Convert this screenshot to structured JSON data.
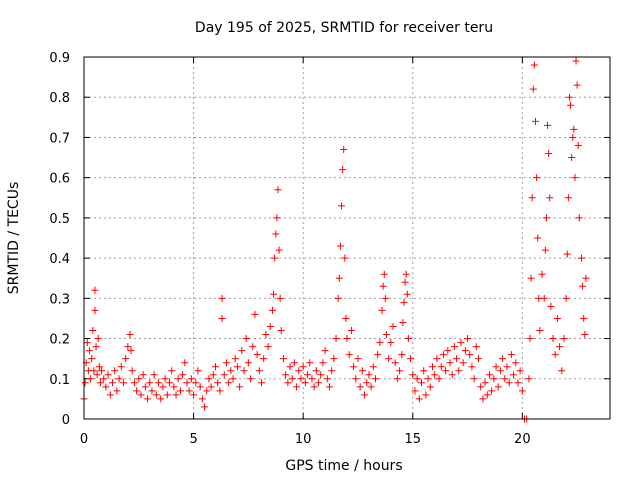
{
  "chart_data": {
    "type": "scatter",
    "title": "Day 195 of 2025, SRMTID for receiver teru",
    "xlabel": "GPS time / hours",
    "ylabel": "SRMTID / TECUs",
    "xlim": [
      0,
      24
    ],
    "ylim": [
      0,
      0.9
    ],
    "xticks": [
      0,
      5,
      10,
      15,
      20
    ],
    "xtick_labels": [
      "0",
      "5",
      "10",
      "15",
      "20"
    ],
    "yticks": [
      0,
      0.1,
      0.2,
      0.3,
      0.4,
      0.5,
      0.6,
      0.7,
      0.8,
      0.9
    ],
    "ytick_labels": [
      "0",
      "0.1",
      "0.2",
      "0.3",
      "0.4",
      "0.5",
      "0.6",
      "0.7",
      "0.8",
      "0.9"
    ],
    "grid": true,
    "marker": "+",
    "series": [
      {
        "name": "SRMTID",
        "color": "#ff0000",
        "points": [
          [
            0.0,
            0.05
          ],
          [
            0.05,
            0.09
          ],
          [
            0.1,
            0.14
          ],
          [
            0.15,
            0.19
          ],
          [
            0.2,
            0.12
          ],
          [
            0.25,
            0.17
          ],
          [
            0.3,
            0.1
          ],
          [
            0.35,
            0.15
          ],
          [
            0.4,
            0.22
          ],
          [
            0.45,
            0.12
          ],
          [
            0.5,
            0.27
          ],
          [
            0.5,
            0.32
          ],
          [
            0.55,
            0.18
          ],
          [
            0.6,
            0.11
          ],
          [
            0.65,
            0.2
          ],
          [
            0.7,
            0.13
          ],
          [
            0.75,
            0.09
          ],
          [
            0.8,
            0.12
          ],
          [
            0.9,
            0.1
          ],
          [
            1.0,
            0.08
          ],
          [
            1.1,
            0.11
          ],
          [
            1.2,
            0.06
          ],
          [
            1.3,
            0.09
          ],
          [
            1.4,
            0.12
          ],
          [
            1.5,
            0.07
          ],
          [
            1.6,
            0.1
          ],
          [
            1.7,
            0.13
          ],
          [
            1.8,
            0.09
          ],
          [
            1.9,
            0.15
          ],
          [
            2.0,
            0.18
          ],
          [
            2.1,
            0.21
          ],
          [
            2.15,
            0.17
          ],
          [
            2.2,
            0.12
          ],
          [
            2.3,
            0.09
          ],
          [
            2.4,
            0.07
          ],
          [
            2.5,
            0.1
          ],
          [
            2.6,
            0.06
          ],
          [
            2.7,
            0.11
          ],
          [
            2.8,
            0.08
          ],
          [
            2.9,
            0.05
          ],
          [
            3.0,
            0.09
          ],
          [
            3.1,
            0.07
          ],
          [
            3.2,
            0.11
          ],
          [
            3.3,
            0.06
          ],
          [
            3.4,
            0.09
          ],
          [
            3.5,
            0.05
          ],
          [
            3.6,
            0.08
          ],
          [
            3.7,
            0.1
          ],
          [
            3.8,
            0.06
          ],
          [
            3.9,
            0.09
          ],
          [
            4.0,
            0.12
          ],
          [
            4.1,
            0.08
          ],
          [
            4.2,
            0.06
          ],
          [
            4.3,
            0.1
          ],
          [
            4.4,
            0.07
          ],
          [
            4.5,
            0.11
          ],
          [
            4.6,
            0.14
          ],
          [
            4.7,
            0.09
          ],
          [
            4.8,
            0.07
          ],
          [
            4.9,
            0.1
          ],
          [
            5.0,
            0.06
          ],
          [
            5.1,
            0.09
          ],
          [
            5.2,
            0.12
          ],
          [
            5.3,
            0.08
          ],
          [
            5.4,
            0.05
          ],
          [
            5.5,
            0.03
          ],
          [
            5.6,
            0.07
          ],
          [
            5.7,
            0.1
          ],
          [
            5.8,
            0.08
          ],
          [
            5.9,
            0.11
          ],
          [
            6.0,
            0.13
          ],
          [
            6.1,
            0.09
          ],
          [
            6.2,
            0.07
          ],
          [
            6.3,
            0.25
          ],
          [
            6.3,
            0.3
          ],
          [
            6.4,
            0.11
          ],
          [
            6.5,
            0.14
          ],
          [
            6.6,
            0.09
          ],
          [
            6.7,
            0.12
          ],
          [
            6.8,
            0.1
          ],
          [
            6.9,
            0.15
          ],
          [
            7.0,
            0.13
          ],
          [
            7.1,
            0.08
          ],
          [
            7.2,
            0.17
          ],
          [
            7.3,
            0.12
          ],
          [
            7.4,
            0.2
          ],
          [
            7.5,
            0.14
          ],
          [
            7.6,
            0.1
          ],
          [
            7.7,
            0.18
          ],
          [
            7.8,
            0.26
          ],
          [
            7.9,
            0.16
          ],
          [
            8.0,
            0.12
          ],
          [
            8.1,
            0.09
          ],
          [
            8.2,
            0.15
          ],
          [
            8.3,
            0.21
          ],
          [
            8.4,
            0.18
          ],
          [
            8.5,
            0.23
          ],
          [
            8.6,
            0.27
          ],
          [
            8.65,
            0.31
          ],
          [
            8.7,
            0.4
          ],
          [
            8.75,
            0.46
          ],
          [
            8.8,
            0.5
          ],
          [
            8.85,
            0.57
          ],
          [
            8.9,
            0.42
          ],
          [
            8.95,
            0.3
          ],
          [
            9.0,
            0.22
          ],
          [
            9.1,
            0.15
          ],
          [
            9.2,
            0.11
          ],
          [
            9.3,
            0.09
          ],
          [
            9.4,
            0.13
          ],
          [
            9.5,
            0.1
          ],
          [
            9.6,
            0.14
          ],
          [
            9.7,
            0.08
          ],
          [
            9.8,
            0.12
          ],
          [
            9.9,
            0.1
          ],
          [
            10.0,
            0.13
          ],
          [
            10.1,
            0.09
          ],
          [
            10.2,
            0.11
          ],
          [
            10.3,
            0.14
          ],
          [
            10.4,
            0.1
          ],
          [
            10.5,
            0.08
          ],
          [
            10.6,
            0.12
          ],
          [
            10.7,
            0.09
          ],
          [
            10.8,
            0.11
          ],
          [
            10.9,
            0.14
          ],
          [
            11.0,
            0.17
          ],
          [
            11.1,
            0.1
          ],
          [
            11.2,
            0.08
          ],
          [
            11.3,
            0.12
          ],
          [
            11.4,
            0.15
          ],
          [
            11.5,
            0.2
          ],
          [
            11.6,
            0.3
          ],
          [
            11.65,
            0.35
          ],
          [
            11.7,
            0.43
          ],
          [
            11.75,
            0.53
          ],
          [
            11.8,
            0.62
          ],
          [
            11.85,
            0.67
          ],
          [
            11.9,
            0.4
          ],
          [
            11.95,
            0.25
          ],
          [
            12.0,
            0.2
          ],
          [
            12.1,
            0.16
          ],
          [
            12.2,
            0.22
          ],
          [
            12.3,
            0.13
          ],
          [
            12.4,
            0.1
          ],
          [
            12.5,
            0.15
          ],
          [
            12.6,
            0.08
          ],
          [
            12.7,
            0.12
          ],
          [
            12.8,
            0.06
          ],
          [
            12.9,
            0.09
          ],
          [
            13.0,
            0.11
          ],
          [
            13.1,
            0.08
          ],
          [
            13.2,
            0.13
          ],
          [
            13.3,
            0.1
          ],
          [
            13.4,
            0.16
          ],
          [
            13.5,
            0.19
          ],
          [
            13.6,
            0.27
          ],
          [
            13.65,
            0.33
          ],
          [
            13.7,
            0.36
          ],
          [
            13.75,
            0.3
          ],
          [
            13.8,
            0.21
          ],
          [
            13.9,
            0.15
          ],
          [
            14.0,
            0.19
          ],
          [
            14.1,
            0.23
          ],
          [
            14.2,
            0.14
          ],
          [
            14.3,
            0.1
          ],
          [
            14.4,
            0.12
          ],
          [
            14.5,
            0.16
          ],
          [
            14.55,
            0.24
          ],
          [
            14.6,
            0.29
          ],
          [
            14.65,
            0.34
          ],
          [
            14.7,
            0.36
          ],
          [
            14.75,
            0.31
          ],
          [
            14.8,
            0.2
          ],
          [
            14.9,
            0.15
          ],
          [
            15.0,
            0.11
          ],
          [
            15.1,
            0.07
          ],
          [
            15.2,
            0.1
          ],
          [
            15.3,
            0.05
          ],
          [
            15.4,
            0.09
          ],
          [
            15.5,
            0.12
          ],
          [
            15.6,
            0.06
          ],
          [
            15.7,
            0.1
          ],
          [
            15.8,
            0.08
          ],
          [
            15.9,
            0.13
          ],
          [
            16.0,
            0.11
          ],
          [
            16.1,
            0.15
          ],
          [
            16.2,
            0.1
          ],
          [
            16.3,
            0.13
          ],
          [
            16.4,
            0.16
          ],
          [
            16.5,
            0.12
          ],
          [
            16.6,
            0.17
          ],
          [
            16.7,
            0.14
          ],
          [
            16.8,
            0.11
          ],
          [
            16.9,
            0.18
          ],
          [
            17.0,
            0.15
          ],
          [
            17.1,
            0.12
          ],
          [
            17.2,
            0.19
          ],
          [
            17.3,
            0.14
          ],
          [
            17.4,
            0.17
          ],
          [
            17.5,
            0.2
          ],
          [
            17.6,
            0.16
          ],
          [
            17.7,
            0.13
          ],
          [
            17.8,
            0.1
          ],
          [
            17.9,
            0.18
          ],
          [
            18.0,
            0.15
          ],
          [
            18.1,
            0.08
          ],
          [
            18.2,
            0.05
          ],
          [
            18.3,
            0.09
          ],
          [
            18.4,
            0.06
          ],
          [
            18.5,
            0.11
          ],
          [
            18.6,
            0.07
          ],
          [
            18.7,
            0.1
          ],
          [
            18.8,
            0.13
          ],
          [
            18.9,
            0.08
          ],
          [
            19.0,
            0.12
          ],
          [
            19.1,
            0.15
          ],
          [
            19.2,
            0.1
          ],
          [
            19.3,
            0.13
          ],
          [
            19.4,
            0.09
          ],
          [
            19.5,
            0.16
          ],
          [
            19.6,
            0.11
          ],
          [
            19.7,
            0.14
          ],
          [
            19.8,
            0.09
          ],
          [
            19.9,
            0.12
          ],
          [
            20.0,
            0.07
          ],
          [
            20.1,
            0.0
          ],
          [
            20.2,
            0.0
          ],
          [
            20.3,
            0.1
          ],
          [
            20.35,
            0.2
          ],
          [
            20.4,
            0.35
          ],
          [
            20.45,
            0.55
          ],
          [
            20.5,
            0.82
          ],
          [
            20.55,
            0.88
          ],
          [
            20.6,
            0.74
          ],
          [
            20.65,
            0.6
          ],
          [
            20.7,
            0.45
          ],
          [
            20.75,
            0.3
          ],
          [
            20.8,
            0.22
          ],
          [
            20.9,
            0.36
          ],
          [
            21.0,
            0.3
          ],
          [
            21.05,
            0.42
          ],
          [
            21.1,
            0.5
          ],
          [
            21.15,
            0.73
          ],
          [
            21.2,
            0.66
          ],
          [
            21.25,
            0.55
          ],
          [
            21.3,
            0.28
          ],
          [
            21.4,
            0.2
          ],
          [
            21.5,
            0.16
          ],
          [
            21.6,
            0.25
          ],
          [
            21.7,
            0.18
          ],
          [
            21.8,
            0.12
          ],
          [
            21.9,
            0.2
          ],
          [
            22.0,
            0.3
          ],
          [
            22.05,
            0.41
          ],
          [
            22.1,
            0.55
          ],
          [
            22.15,
            0.8
          ],
          [
            22.2,
            0.78
          ],
          [
            22.25,
            0.65
          ],
          [
            22.3,
            0.7
          ],
          [
            22.35,
            0.72
          ],
          [
            22.4,
            0.6
          ],
          [
            22.45,
            0.89
          ],
          [
            22.5,
            0.83
          ],
          [
            22.55,
            0.68
          ],
          [
            22.6,
            0.5
          ],
          [
            22.7,
            0.4
          ],
          [
            22.75,
            0.33
          ],
          [
            22.8,
            0.25
          ],
          [
            22.85,
            0.21
          ],
          [
            22.9,
            0.35
          ]
        ]
      }
    ]
  }
}
